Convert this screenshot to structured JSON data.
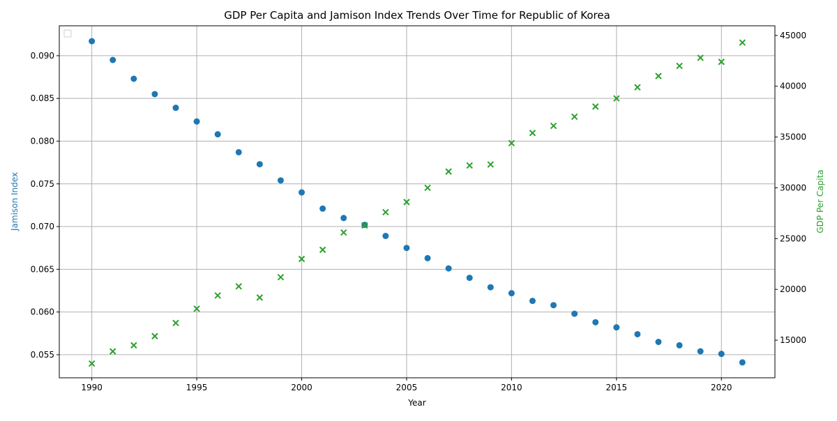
{
  "chart_data": {
    "type": "scatter",
    "title": "GDP Per Capita and Jamison Index Trends Over Time for Republic of Korea",
    "xlabel": "Year",
    "ylabel_left": "Jamison Index",
    "ylabel_right": "GDP Per Capita",
    "x": [
      1990,
      1991,
      1992,
      1993,
      1994,
      1995,
      1996,
      1997,
      1998,
      1999,
      2000,
      2001,
      2002,
      2003,
      2004,
      2005,
      2006,
      2007,
      2008,
      2009,
      2010,
      2011,
      2012,
      2013,
      2014,
      2015,
      2016,
      2017,
      2018,
      2019,
      2020,
      2021
    ],
    "xlim": [
      1988.45,
      2022.55
    ],
    "xticks": [
      1990,
      1995,
      2000,
      2005,
      2010,
      2015,
      2020
    ],
    "ylim_left": [
      0.0523,
      0.0935
    ],
    "yticks_left": [
      "0.055",
      "0.060",
      "0.065",
      "0.070",
      "0.075",
      "0.080",
      "0.085",
      "0.090"
    ],
    "ylim_right": [
      11300,
      45950
    ],
    "yticks_right": [
      15000,
      20000,
      25000,
      30000,
      35000,
      40000,
      45000
    ],
    "grid": true,
    "legend": "top-left (empty)",
    "series": [
      {
        "axis": "left",
        "marker": "circle",
        "color": "#1f77b4",
        "values": [
          0.0917,
          0.0895,
          0.0873,
          0.0855,
          0.0839,
          0.0823,
          0.0808,
          0.0787,
          0.0773,
          0.0754,
          0.074,
          0.0721,
          0.071,
          0.0702,
          0.0689,
          0.0675,
          0.0663,
          0.0651,
          0.064,
          0.0629,
          0.0622,
          0.0613,
          0.0608,
          0.0598,
          0.0588,
          0.0582,
          0.0574,
          0.0565,
          0.0561,
          0.0554,
          0.0551,
          0.0541
        ]
      },
      {
        "axis": "right",
        "marker": "x",
        "color": "#2ca02c",
        "values": [
          12700,
          13900,
          14500,
          15400,
          16700,
          18100,
          19400,
          20300,
          19200,
          21200,
          23000,
          23900,
          25600,
          26300,
          27600,
          28600,
          30000,
          31600,
          32200,
          32300,
          34400,
          35400,
          36100,
          37000,
          38000,
          38800,
          39900,
          41000,
          42000,
          42800,
          42400,
          44300
        ]
      }
    ]
  }
}
